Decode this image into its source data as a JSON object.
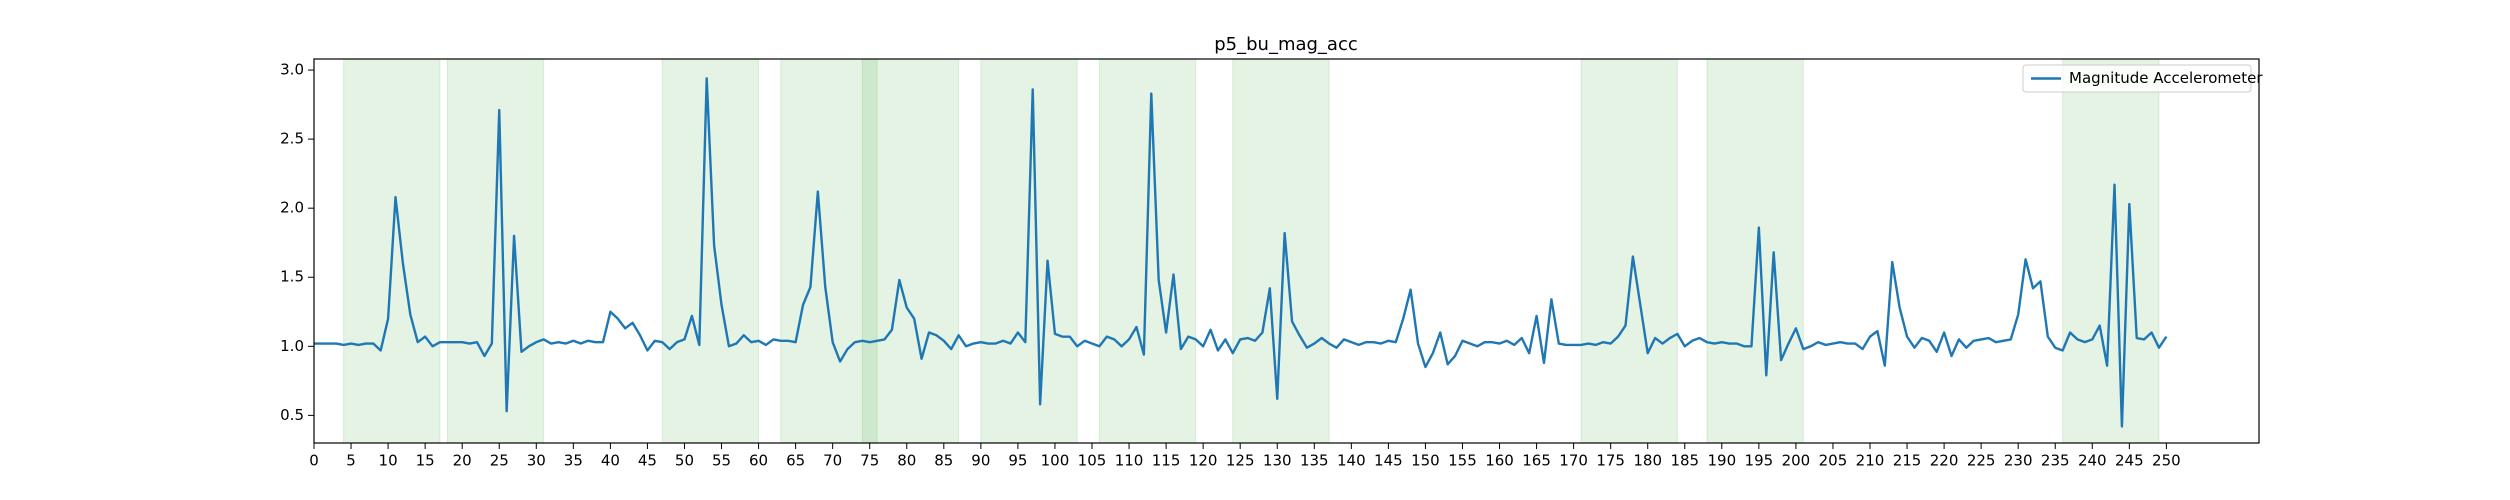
{
  "chart_data": {
    "type": "line",
    "title": "p5_bu_mag_acc",
    "x": [
      0,
      1,
      2,
      3,
      4,
      5,
      6,
      7,
      8,
      9,
      10,
      11,
      12,
      13,
      14,
      15,
      16,
      17,
      18,
      19,
      20,
      21,
      22,
      23,
      24,
      25,
      26,
      27,
      28,
      29,
      30,
      31,
      32,
      33,
      34,
      35,
      36,
      37,
      38,
      39,
      40,
      41,
      42,
      43,
      44,
      45,
      46,
      47,
      48,
      49,
      50,
      51,
      52,
      53,
      54,
      55,
      56,
      57,
      58,
      59,
      60,
      61,
      62,
      63,
      64,
      65,
      66,
      67,
      68,
      69,
      70,
      71,
      72,
      73,
      74,
      75,
      76,
      77,
      78,
      79,
      80,
      81,
      82,
      83,
      84,
      85,
      86,
      87,
      88,
      89,
      90,
      91,
      92,
      93,
      94,
      95,
      96,
      97,
      98,
      99,
      100,
      101,
      102,
      103,
      104,
      105,
      106,
      107,
      108,
      109,
      110,
      111,
      112,
      113,
      114,
      115,
      116,
      117,
      118,
      119,
      120,
      121,
      122,
      123,
      124,
      125,
      126,
      127,
      128,
      129,
      130,
      131,
      132,
      133,
      134,
      135,
      136,
      137,
      138,
      139,
      140,
      141,
      142,
      143,
      144,
      145,
      146,
      147,
      148,
      149,
      150,
      151,
      152,
      153,
      154,
      155,
      156,
      157,
      158,
      159,
      160,
      161,
      162,
      163,
      164,
      165,
      166,
      167,
      168,
      169,
      170,
      171,
      172,
      173,
      174,
      175,
      176,
      177,
      178,
      179,
      180,
      181,
      182,
      183,
      184,
      185,
      186,
      187,
      188,
      189,
      190,
      191,
      192,
      193,
      194,
      195,
      196,
      197,
      198,
      199,
      200,
      201,
      202,
      203,
      204,
      205,
      206,
      207,
      208,
      209,
      210,
      211,
      212,
      213,
      214,
      215,
      216,
      217,
      218,
      219,
      220,
      221,
      222,
      223,
      224,
      225,
      226,
      227,
      228,
      229,
      230,
      231,
      232,
      233,
      234,
      235,
      236,
      237,
      238,
      239,
      240,
      241,
      242,
      243,
      244,
      245,
      246,
      247,
      248,
      249,
      250
    ],
    "series": [
      {
        "name": "Magnitude Accelerometer",
        "color": "#1f77b4",
        "values": [
          1.02,
          1.02,
          1.02,
          1.02,
          1.01,
          1.02,
          1.01,
          1.02,
          1.02,
          0.97,
          1.2,
          2.08,
          1.6,
          1.23,
          1.03,
          1.07,
          1.0,
          1.03,
          1.03,
          1.03,
          1.03,
          1.02,
          1.03,
          0.93,
          1.02,
          2.71,
          0.53,
          1.8,
          0.96,
          1.0,
          1.03,
          1.05,
          1.02,
          1.03,
          1.02,
          1.04,
          1.02,
          1.04,
          1.03,
          1.03,
          1.25,
          1.2,
          1.13,
          1.17,
          1.08,
          0.97,
          1.04,
          1.03,
          0.98,
          1.03,
          1.05,
          1.22,
          1.01,
          2.94,
          1.73,
          1.3,
          1.0,
          1.02,
          1.08,
          1.03,
          1.04,
          1.01,
          1.05,
          1.04,
          1.04,
          1.03,
          1.3,
          1.43,
          2.12,
          1.43,
          1.03,
          0.89,
          0.98,
          1.03,
          1.04,
          1.03,
          1.04,
          1.05,
          1.12,
          1.48,
          1.28,
          1.2,
          0.91,
          1.1,
          1.08,
          1.04,
          0.98,
          1.08,
          1.0,
          1.02,
          1.03,
          1.02,
          1.02,
          1.04,
          1.02,
          1.1,
          1.03,
          2.86,
          0.58,
          1.62,
          1.09,
          1.07,
          1.07,
          1.0,
          1.04,
          1.02,
          1.0,
          1.07,
          1.05,
          1.0,
          1.05,
          1.14,
          0.94,
          2.83,
          1.48,
          1.1,
          1.52,
          0.98,
          1.07,
          1.05,
          1.0,
          1.12,
          0.97,
          1.05,
          0.95,
          1.05,
          1.06,
          1.04,
          1.1,
          1.42,
          0.62,
          1.82,
          1.18,
          1.08,
          0.99,
          1.02,
          1.06,
          1.02,
          0.99,
          1.05,
          1.03,
          1.01,
          1.03,
          1.03,
          1.02,
          1.04,
          1.03,
          1.2,
          1.41,
          1.02,
          0.85,
          0.95,
          1.1,
          0.87,
          0.93,
          1.04,
          1.02,
          1.0,
          1.03,
          1.03,
          1.02,
          1.04,
          1.01,
          1.06,
          0.95,
          1.22,
          0.88,
          1.34,
          1.02,
          1.01,
          1.01,
          1.01,
          1.02,
          1.01,
          1.03,
          1.02,
          1.07,
          1.15,
          1.65,
          1.3,
          0.95,
          1.06,
          1.02,
          1.06,
          1.09,
          1.0,
          1.04,
          1.06,
          1.03,
          1.02,
          1.03,
          1.02,
          1.02,
          1.0,
          1.0,
          1.86,
          0.79,
          1.68,
          0.9,
          1.02,
          1.13,
          0.98,
          1.0,
          1.03,
          1.01,
          1.02,
          1.03,
          1.02,
          1.02,
          0.98,
          1.07,
          1.11,
          0.86,
          1.61,
          1.28,
          1.07,
          0.99,
          1.06,
          1.04,
          0.96,
          1.1,
          0.93,
          1.05,
          0.99,
          1.04,
          1.05,
          1.06,
          1.03,
          1.04,
          1.05,
          1.23,
          1.63,
          1.42,
          1.47,
          1.07,
          0.99,
          0.97,
          1.1,
          1.05,
          1.03,
          1.05,
          1.15,
          0.86,
          2.17,
          0.42,
          2.03,
          1.06,
          1.05,
          1.1,
          0.99,
          1.07
        ]
      }
    ],
    "spans": [
      [
        4,
        17
      ],
      [
        18,
        31
      ],
      [
        47,
        60
      ],
      [
        63,
        76
      ],
      [
        74,
        87
      ],
      [
        90,
        103
      ],
      [
        106,
        119
      ],
      [
        124,
        137
      ],
      [
        171,
        184
      ],
      [
        188,
        201
      ],
      [
        236,
        249
      ]
    ],
    "span_color": "#2ca02c",
    "xlim": [
      0,
      262.5
    ],
    "ylim": [
      0.3,
      3.08
    ],
    "xticks": [
      0,
      5,
      10,
      15,
      20,
      25,
      30,
      35,
      40,
      45,
      50,
      55,
      60,
      65,
      70,
      75,
      80,
      85,
      90,
      95,
      100,
      105,
      110,
      115,
      120,
      125,
      130,
      135,
      140,
      145,
      150,
      155,
      160,
      165,
      170,
      175,
      180,
      185,
      190,
      195,
      200,
      205,
      210,
      215,
      220,
      225,
      230,
      235,
      240,
      245,
      250
    ],
    "yticks": [
      0.5,
      {
        "value": 1,
        "label": "1.0"
      },
      1.5,
      {
        "value": 2,
        "label": "2.0"
      },
      2.5,
      {
        "value": 3,
        "label": "3.0"
      }
    ],
    "legend": "upper right"
  }
}
